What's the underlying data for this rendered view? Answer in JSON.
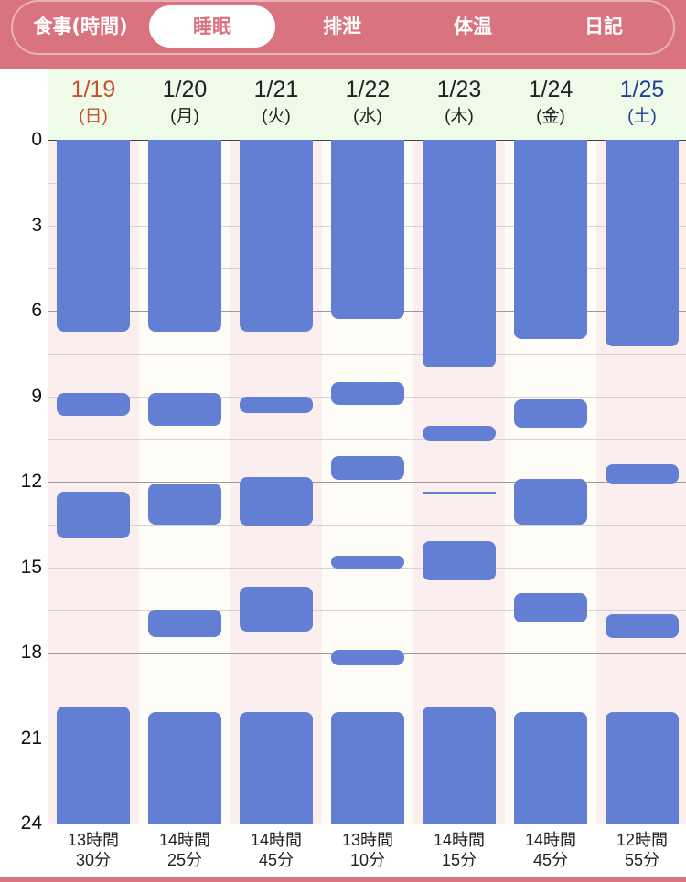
{
  "tabs": [
    {
      "label": "食事(時間)",
      "active": false
    },
    {
      "label": "睡眠",
      "active": true
    },
    {
      "label": "排泄",
      "active": false
    },
    {
      "label": "体温",
      "active": false
    },
    {
      "label": "日記",
      "active": false
    }
  ],
  "colors": {
    "accent": "#d9737f",
    "bar": "#637fd3",
    "sunday": "#c8502c",
    "saturday": "#1f3f9a",
    "header_bg": "#eefbe9"
  },
  "chart_data": {
    "type": "bar",
    "orientation": "vertical-timeline",
    "y_axis": {
      "min": 0,
      "max": 24,
      "ticks": [
        "0",
        "3",
        "6",
        "9",
        "12",
        "15",
        "18",
        "21",
        "24"
      ],
      "inverted": true
    },
    "grid": true,
    "days": [
      {
        "date": "1/19",
        "weekday": "(日)",
        "type": "sun",
        "total": [
          "13時間",
          "30分"
        ],
        "sleep": [
          [
            0,
            6.75
          ],
          [
            8.9,
            9.7
          ],
          [
            12.35,
            14.0
          ],
          [
            19.9,
            24
          ]
        ]
      },
      {
        "date": "1/20",
        "weekday": "(月)",
        "type": "weekday",
        "total": [
          "14時間",
          "25分"
        ],
        "sleep": [
          [
            0,
            6.75
          ],
          [
            8.9,
            10.05
          ],
          [
            12.05,
            13.5
          ],
          [
            16.5,
            17.45
          ],
          [
            20.1,
            24
          ]
        ]
      },
      {
        "date": "1/21",
        "weekday": "(火)",
        "type": "weekday",
        "total": [
          "14時間",
          "45分"
        ],
        "sleep": [
          [
            0,
            6.75
          ],
          [
            9.0,
            9.6
          ],
          [
            11.85,
            13.55
          ],
          [
            15.7,
            17.25
          ],
          [
            20.1,
            24
          ]
        ]
      },
      {
        "date": "1/22",
        "weekday": "(水)",
        "type": "weekday",
        "total": [
          "13時間",
          "10分"
        ],
        "sleep": [
          [
            0,
            6.3
          ],
          [
            8.5,
            9.3
          ],
          [
            11.1,
            11.95
          ],
          [
            14.6,
            15.05
          ],
          [
            17.9,
            18.45
          ],
          [
            20.1,
            24
          ]
        ]
      },
      {
        "date": "1/23",
        "weekday": "(木)",
        "type": "weekday",
        "total": [
          "14時間",
          "15分"
        ],
        "sleep": [
          [
            0,
            8.0
          ],
          [
            10.05,
            10.55
          ],
          [
            12.35,
            12.45
          ],
          [
            14.1,
            15.45
          ],
          [
            19.9,
            24
          ]
        ]
      },
      {
        "date": "1/24",
        "weekday": "(金)",
        "type": "weekday",
        "total": [
          "14時間",
          "45分"
        ],
        "sleep": [
          [
            0,
            7.0
          ],
          [
            9.1,
            10.1
          ],
          [
            11.9,
            13.5
          ],
          [
            15.9,
            16.95
          ],
          [
            20.1,
            24
          ]
        ]
      },
      {
        "date": "1/25",
        "weekday": "(土)",
        "type": "sat",
        "total": [
          "12時間",
          "55分"
        ],
        "sleep": [
          [
            0,
            7.25
          ],
          [
            11.4,
            12.05
          ],
          [
            16.65,
            17.5
          ],
          [
            20.1,
            24
          ]
        ]
      }
    ]
  }
}
